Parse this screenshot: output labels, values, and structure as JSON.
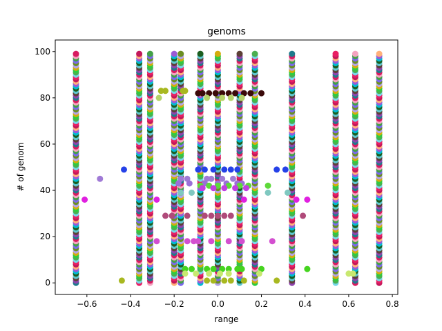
{
  "chart_data": {
    "type": "scatter",
    "title": "genoms",
    "xlabel": "range",
    "ylabel": "# of genom",
    "xlim": [
      -0.745,
      0.825
    ],
    "ylim": [
      -5,
      105
    ],
    "xticks": [
      -0.6,
      -0.4,
      -0.2,
      0.0,
      0.2,
      0.4,
      0.6,
      0.8
    ],
    "xtick_labels": [
      "−0.6",
      "−0.4",
      "−0.2",
      "0.0",
      "0.2",
      "0.4",
      "0.6",
      "0.8"
    ],
    "yticks": [
      0,
      20,
      40,
      60,
      80,
      100
    ],
    "ytick_labels": [
      "0",
      "20",
      "40",
      "60",
      "80",
      "100"
    ],
    "grid": false,
    "column_x": [
      -0.65,
      -0.36,
      -0.31,
      -0.2,
      -0.17,
      -0.08,
      0.0,
      0.1,
      0.17,
      0.34,
      0.54,
      0.63,
      0.74
    ],
    "genome_count": 100,
    "palette": [
      "#1f7a8c",
      "#5ec8d0",
      "#9b59d6",
      "#e91e63",
      "#2ecc40",
      "#6b8e23",
      "#f4a3c0",
      "#8e44ad",
      "#1b5e20",
      "#ffb07a",
      "#76d7ea",
      "#d4ac0d",
      "#7b68ee",
      "#d81b60",
      "#5d4037",
      "#00bcd4",
      "#c2185b",
      "#4caf50",
      "#b3a3e8",
      "#43a047"
    ],
    "scattered_points": [
      {
        "genom": 82,
        "x": [
          -0.09,
          -0.07,
          -0.04,
          -0.01,
          0.02,
          0.05,
          0.08,
          0.12,
          0.15,
          0.2
        ],
        "color": "#3b0a0a"
      },
      {
        "genom": 83,
        "x": [
          -0.26,
          -0.24,
          -0.16,
          -0.15
        ],
        "color": "#a8b820"
      },
      {
        "genom": 80,
        "x": [
          -0.27,
          -0.05,
          0.02,
          0.06,
          0.11
        ],
        "color": "#b5d36a"
      },
      {
        "genom": 49,
        "x": [
          -0.43,
          -0.09,
          -0.06,
          -0.02,
          0.03,
          0.06,
          0.09,
          0.27,
          0.31
        ],
        "color": "#2541e8"
      },
      {
        "genom": 45,
        "x": [
          -0.54,
          -0.17,
          -0.14,
          -0.05,
          -0.03,
          0.02,
          0.07
        ],
        "color": "#a07ad6"
      },
      {
        "genom": 43,
        "x": [
          -0.18,
          -0.13,
          -0.06,
          0.0,
          0.04,
          0.09,
          0.11
        ],
        "color": "#9b6fd8"
      },
      {
        "genom": 42,
        "x": [
          -0.08,
          -0.04,
          0.0,
          0.05,
          0.1,
          0.14,
          0.23
        ],
        "color": "#5ed93a"
      },
      {
        "genom": 41,
        "x": [
          -0.07,
          -0.02,
          0.03,
          0.08,
          0.13
        ],
        "color": "#c040e0"
      },
      {
        "genom": 39,
        "x": [
          -0.17,
          -0.12,
          0.23,
          0.32
        ],
        "color": "#7fc8c0"
      },
      {
        "genom": 36,
        "x": [
          -0.61,
          -0.28,
          0.12,
          0.36,
          0.41
        ],
        "color": "#e020e0"
      },
      {
        "genom": 29,
        "x": [
          -0.24,
          -0.21,
          -0.14,
          -0.06,
          -0.03,
          0.0,
          0.03,
          0.06,
          0.39
        ],
        "color": "#b04a7a"
      },
      {
        "genom": 18,
        "x": [
          -0.28,
          -0.14,
          -0.11,
          -0.09,
          -0.03,
          0.05,
          0.11,
          0.25
        ],
        "color": "#d34fd0"
      },
      {
        "genom": 6,
        "x": [
          -0.15,
          -0.12,
          -0.05,
          -0.02,
          0.02,
          0.05,
          0.09,
          0.11,
          0.2,
          0.41
        ],
        "color": "#45d41f"
      },
      {
        "genom": 4,
        "x": [
          -0.15,
          -0.1,
          -0.04,
          0.01,
          0.05,
          0.19,
          0.6,
          0.62
        ],
        "color": "#c8e870"
      },
      {
        "genom": 1,
        "x": [
          -0.44,
          -0.05,
          -0.02,
          0.03,
          0.06,
          0.12,
          0.27
        ],
        "color": "#a8b820"
      }
    ]
  }
}
